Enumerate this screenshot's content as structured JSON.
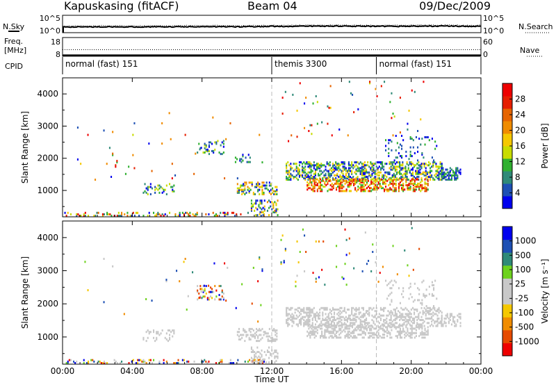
{
  "header": {
    "station": "Kapuskasing (fitACF)",
    "beam": "Beam 04",
    "date": "09/Dec/2009"
  },
  "colors": {
    "axis": "#000000",
    "dashed_marker": "#bbbbbb",
    "ground_scatter": "#c8c8c8"
  },
  "chart_data": [
    {
      "type": "line",
      "name": "noise-panel",
      "left_label": "N.Sky",
      "right_label": "N.Search",
      "left_ticks": [
        "10^5",
        "10^0"
      ],
      "right_ticks": [
        "10^5",
        "10^0"
      ],
      "series": [
        {
          "name": "N.Sky",
          "style": "solid",
          "x": [
            0,
            2,
            4,
            6,
            8,
            10,
            12,
            14,
            16,
            18,
            20,
            22,
            24
          ],
          "values": [
            1.6,
            1.7,
            1.65,
            1.7,
            1.75,
            1.7,
            1.8,
            1.85,
            1.9,
            1.8,
            1.85,
            1.9,
            1.8
          ]
        },
        {
          "name": "N.Search",
          "style": "dotted",
          "x": [
            0,
            2,
            4,
            6,
            8,
            10,
            12,
            14,
            16,
            18,
            20,
            22,
            24
          ],
          "values": [
            1.9,
            2.0,
            1.95,
            2.0,
            2.05,
            2.0,
            2.1,
            2.15,
            2.2,
            2.1,
            2.15,
            2.2,
            2.1
          ]
        }
      ]
    },
    {
      "type": "line",
      "name": "freq-panel",
      "left_label_1": "Freq.",
      "left_label_2": "[MHz]",
      "left_sub_label": "CPID",
      "right_label": "Nave",
      "left_ticks": [
        "18",
        "8"
      ],
      "right_ticks": [
        "60",
        "0"
      ],
      "series": [
        {
          "name": "Freq.",
          "style": "dotted",
          "x": [
            0,
            24
          ],
          "values": [
            11.5,
            11.5
          ]
        },
        {
          "name": "Nave",
          "style": "solid",
          "x": [
            0,
            24
          ],
          "values": [
            8.6,
            8.6
          ]
        }
      ]
    },
    {
      "type": "table",
      "name": "cpid-panel",
      "segments": [
        {
          "label": "normal (fast) 151",
          "start": 0,
          "end": 12
        },
        {
          "label": "themis 3300",
          "start": 12,
          "end": 18
        },
        {
          "label": "normal (fast) 151",
          "start": 18,
          "end": 24
        }
      ]
    },
    {
      "type": "heatmap",
      "name": "power-panel",
      "ylabel": "Slant Range [km]",
      "xlim": [
        0,
        24
      ],
      "ylim": [
        180,
        4500
      ],
      "yticks": [
        "1000",
        "2000",
        "3000",
        "4000"
      ],
      "dashed_times": [
        12,
        18
      ],
      "colorbar": {
        "label": "Power [dB]",
        "colors": [
          "#0000ee",
          "#1e50b4",
          "#2f8a78",
          "#30b030",
          "#c8dc00",
          "#f5c800",
          "#f08c00",
          "#e66400",
          "#e61e00",
          "#ee0000"
        ],
        "ticks": [
          "4",
          "8",
          "12",
          "16",
          "20",
          "24",
          "28"
        ]
      },
      "regions": [
        {
          "t": [
            0.1,
            11.6
          ],
          "r": [
            180,
            320
          ],
          "density": 0.28,
          "c": [
            0,
            9
          ]
        },
        {
          "t": [
            4.6,
            6.4
          ],
          "r": [
            850,
            1200
          ],
          "density": 0.22,
          "c": [
            0,
            4
          ]
        },
        {
          "t": [
            7.7,
            9.3
          ],
          "r": [
            2100,
            2550
          ],
          "density": 0.22,
          "c": [
            0,
            4
          ]
        },
        {
          "t": [
            9.8,
            10.8
          ],
          "r": [
            1850,
            2100
          ],
          "density": 0.18,
          "c": [
            0,
            3
          ]
        },
        {
          "t": [
            10.0,
            12.3
          ],
          "r": [
            850,
            1250
          ],
          "density": 0.35,
          "c": [
            0,
            6
          ]
        },
        {
          "t": [
            10.8,
            12.4
          ],
          "r": [
            200,
            700
          ],
          "density": 0.3,
          "c": [
            0,
            6
          ]
        },
        {
          "t": [
            12.8,
            21.8
          ],
          "r": [
            1300,
            1900
          ],
          "density": 0.45,
          "c": [
            0,
            5
          ]
        },
        {
          "t": [
            14.0,
            21.0
          ],
          "r": [
            950,
            1350
          ],
          "density": 0.5,
          "c": [
            3,
            9
          ]
        },
        {
          "t": [
            21.7,
            22.9
          ],
          "r": [
            1300,
            1700
          ],
          "density": 0.45,
          "c": [
            0,
            3
          ]
        },
        {
          "t": [
            18.5,
            21.5
          ],
          "r": [
            1900,
            2700
          ],
          "density": 0.08,
          "c": [
            0,
            3
          ]
        },
        {
          "t": [
            12.5,
            21.0
          ],
          "r": [
            2500,
            4400
          ],
          "density": 0.012,
          "c": [
            0,
            9
          ]
        },
        {
          "t": [
            0.5,
            11.5
          ],
          "r": [
            1300,
            3400
          ],
          "density": 0.006,
          "c": [
            0,
            9
          ]
        }
      ]
    },
    {
      "type": "heatmap",
      "name": "velocity-panel",
      "ylabel": "Slant Range [km]",
      "xlabel": "Time UT",
      "xlim": [
        0,
        24
      ],
      "ylim": [
        180,
        4500
      ],
      "yticks": [
        "1000",
        "2000",
        "3000",
        "4000"
      ],
      "xticks": [
        "00:00",
        "04:00",
        "08:00",
        "12:00",
        "16:00",
        "20:00",
        "00:00"
      ],
      "dashed_times": [
        12,
        18
      ],
      "colorbar": {
        "label": "Velocity [m s⁻¹]",
        "colors": [
          "#ee0000",
          "#e64b00",
          "#f08c00",
          "#f5c800",
          "#c8c8c8",
          "#c8c8c8",
          "#6ed21e",
          "#2f8a78",
          "#1e50b4",
          "#0000ee"
        ],
        "ticks": [
          "-1000",
          "-500",
          "-100",
          "-25",
          "25",
          "100",
          "500",
          "1000"
        ]
      },
      "regions": [
        {
          "t": [
            0.1,
            11.6
          ],
          "r": [
            180,
            320
          ],
          "density": 0.25,
          "c": [
            0,
            9
          ]
        },
        {
          "t": [
            4.6,
            6.4
          ],
          "r": [
            850,
            1200
          ],
          "density": 0.2,
          "c": [
            4,
            5
          ]
        },
        {
          "t": [
            7.7,
            9.3
          ],
          "r": [
            2100,
            2550
          ],
          "density": 0.18,
          "c": [
            0,
            9
          ]
        },
        {
          "t": [
            10.0,
            12.3
          ],
          "r": [
            850,
            1250
          ],
          "density": 0.3,
          "c": [
            4,
            5
          ]
        },
        {
          "t": [
            10.8,
            12.4
          ],
          "r": [
            200,
            700
          ],
          "density": 0.25,
          "c": [
            4,
            5
          ]
        },
        {
          "t": [
            12.8,
            21.8
          ],
          "r": [
            1300,
            1900
          ],
          "density": 0.42,
          "c": [
            4,
            5
          ]
        },
        {
          "t": [
            14.0,
            21.0
          ],
          "r": [
            950,
            1350
          ],
          "density": 0.45,
          "c": [
            4,
            5
          ]
        },
        {
          "t": [
            21.7,
            22.9
          ],
          "r": [
            1300,
            1700
          ],
          "density": 0.4,
          "c": [
            4,
            5
          ]
        },
        {
          "t": [
            18.5,
            21.5
          ],
          "r": [
            1900,
            2700
          ],
          "density": 0.1,
          "c": [
            4,
            5
          ]
        },
        {
          "t": [
            12.5,
            21.0
          ],
          "r": [
            2500,
            4400
          ],
          "density": 0.012,
          "c": [
            0,
            9
          ]
        },
        {
          "t": [
            0.5,
            11.5
          ],
          "r": [
            1300,
            3400
          ],
          "density": 0.006,
          "c": [
            0,
            9
          ]
        }
      ]
    }
  ]
}
